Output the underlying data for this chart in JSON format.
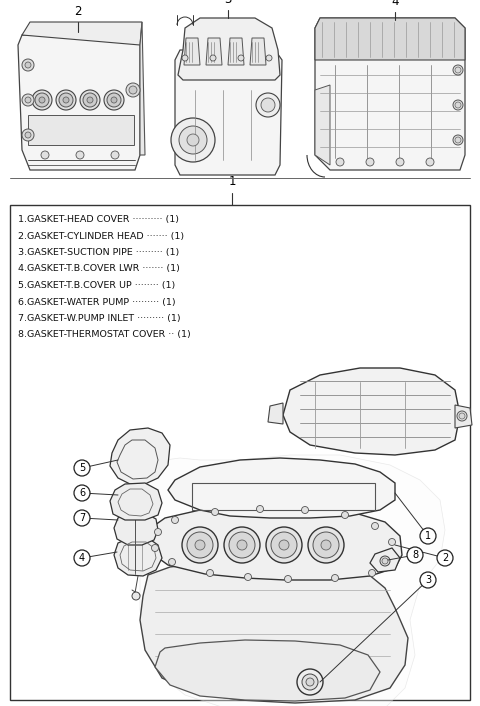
{
  "background_color": "#ffffff",
  "fig_width": 4.8,
  "fig_height": 7.06,
  "dpi": 100,
  "parts_list": [
    "1.GASKET-HEAD COVER",
    "2.GASKET-CYLINDER HEAD",
    "3.GASKET-SUCTION PIPE",
    "4.GASKET-T.B.COVER LWR",
    "5.GASKET-T.B.COVER UP",
    "6.GASKET-WATER PUMP",
    "7.GASKET-W.PUMP INLET",
    "8.GASKET-THERMOSTAT COVER"
  ],
  "parts_dots": [
    "··········",
    "·······",
    "·········",
    "·······",
    "········",
    "·········",
    "·········",
    "··"
  ],
  "line_color": "#333333",
  "thin_line": 0.6,
  "med_line": 0.9,
  "thick_line": 1.2
}
